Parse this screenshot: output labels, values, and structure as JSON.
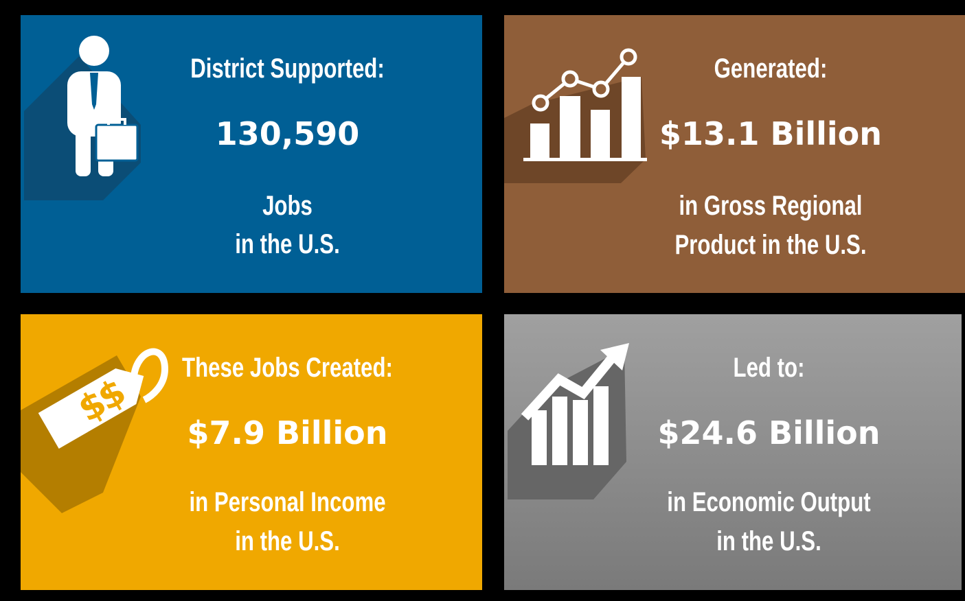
{
  "panels": [
    {
      "heading": "District Supported:",
      "value": "130,590",
      "lines": [
        "Jobs",
        "in the U.S."
      ]
    },
    {
      "heading": "Generated:",
      "value": "$13.1 Billion",
      "lines": [
        "in Gross Regional",
        "Product in the U.S."
      ]
    },
    {
      "heading": "These Jobs Created:",
      "value": "$7.9 Billion",
      "lines": [
        "in Personal Income",
        "in the U.S."
      ]
    },
    {
      "heading": "Led to:",
      "value": "$24.6 Billion",
      "lines": [
        "in Economic Output",
        "in the U.S."
      ]
    }
  ]
}
